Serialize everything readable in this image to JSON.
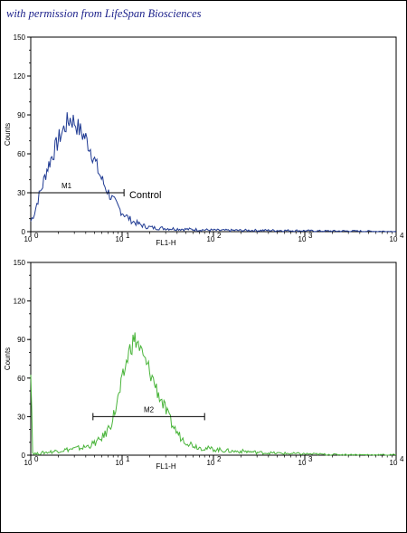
{
  "credit": "with permission from LifeSpan Biosciences",
  "chart_data": [
    {
      "type": "line",
      "xscale": "log",
      "xlim": [
        1,
        10000
      ],
      "ylim": [
        0,
        150
      ],
      "xlabel": "FL1-H",
      "ylabel": "Counts",
      "yticks": [
        "0",
        "30",
        "60",
        "90",
        "120",
        "150"
      ],
      "xticks": [
        {
          "base": "10",
          "exp": "0"
        },
        {
          "base": "10",
          "exp": "1"
        },
        {
          "base": "10",
          "exp": "2"
        },
        {
          "base": "10",
          "exp": "3"
        },
        {
          "base": "10",
          "exp": "4"
        }
      ],
      "color": "#1f3a93",
      "series": [
        {
          "x": [
            1.0,
            1.1,
            1.2,
            1.35,
            1.5,
            1.7,
            1.9,
            2.1,
            2.3,
            2.5,
            2.7,
            3.0,
            3.3,
            3.6,
            4.0,
            4.5,
            5.0,
            5.6,
            6.3,
            7.1,
            8.0,
            9.0,
            10,
            11.5,
            13,
            15,
            18,
            22,
            30,
            45,
            70,
            120,
            200,
            400,
            800,
            1500,
            3000,
            6000,
            10000
          ],
          "y": [
            8,
            15,
            25,
            36,
            48,
            58,
            66,
            74,
            79,
            84,
            87,
            85,
            80,
            76,
            72,
            64,
            55,
            45,
            37,
            30,
            24,
            19,
            15,
            11,
            8,
            6,
            4,
            3,
            2.5,
            2,
            1.5,
            1,
            1,
            1,
            0.8,
            0.5,
            0.5,
            0.3,
            0.2
          ]
        }
      ],
      "gate": {
        "label": "M1",
        "from": 1.0,
        "to": 10.5,
        "y": 30
      },
      "annotation": {
        "text": "Control",
        "x": 12,
        "y": 28
      }
    },
    {
      "type": "line",
      "xscale": "log",
      "xlim": [
        1,
        10000
      ],
      "ylim": [
        0,
        150
      ],
      "xlabel": "FL1-H",
      "ylabel": "Counts",
      "yticks": [
        "0",
        "30",
        "60",
        "90",
        "120",
        "150"
      ],
      "xticks": [
        {
          "base": "10",
          "exp": "0"
        },
        {
          "base": "10",
          "exp": "1"
        },
        {
          "base": "10",
          "exp": "2"
        },
        {
          "base": "10",
          "exp": "3"
        },
        {
          "base": "10",
          "exp": "4"
        }
      ],
      "color": "#49b43a",
      "series": [
        {
          "x": [
            1.0,
            1.05,
            1.15,
            1.4,
            1.8,
            2.3,
            3.0,
            3.8,
            4.6,
            5.5,
            6.5,
            7.5,
            8.5,
            9.5,
            10.5,
            11.5,
            12.5,
            13.5,
            14.5,
            15.5,
            16.5,
            18,
            20,
            22,
            25,
            28,
            32,
            38,
            45,
            55,
            70,
            90,
            120,
            160,
            220,
            320,
            500,
            1000,
            2000,
            4000,
            10000
          ],
          "y": [
            70,
            2,
            1,
            2,
            3,
            4,
            5,
            6,
            8,
            11,
            16,
            24,
            36,
            50,
            64,
            76,
            85,
            90,
            88,
            84,
            78,
            72,
            66,
            58,
            48,
            40,
            30,
            20,
            13,
            9,
            6,
            5,
            4,
            3,
            3,
            2,
            1.5,
            1,
            0.5,
            0.3,
            0.2
          ]
        }
      ],
      "gate": {
        "label": "M2",
        "from": 4.8,
        "to": 80,
        "y": 30
      },
      "annotation": null
    }
  ]
}
